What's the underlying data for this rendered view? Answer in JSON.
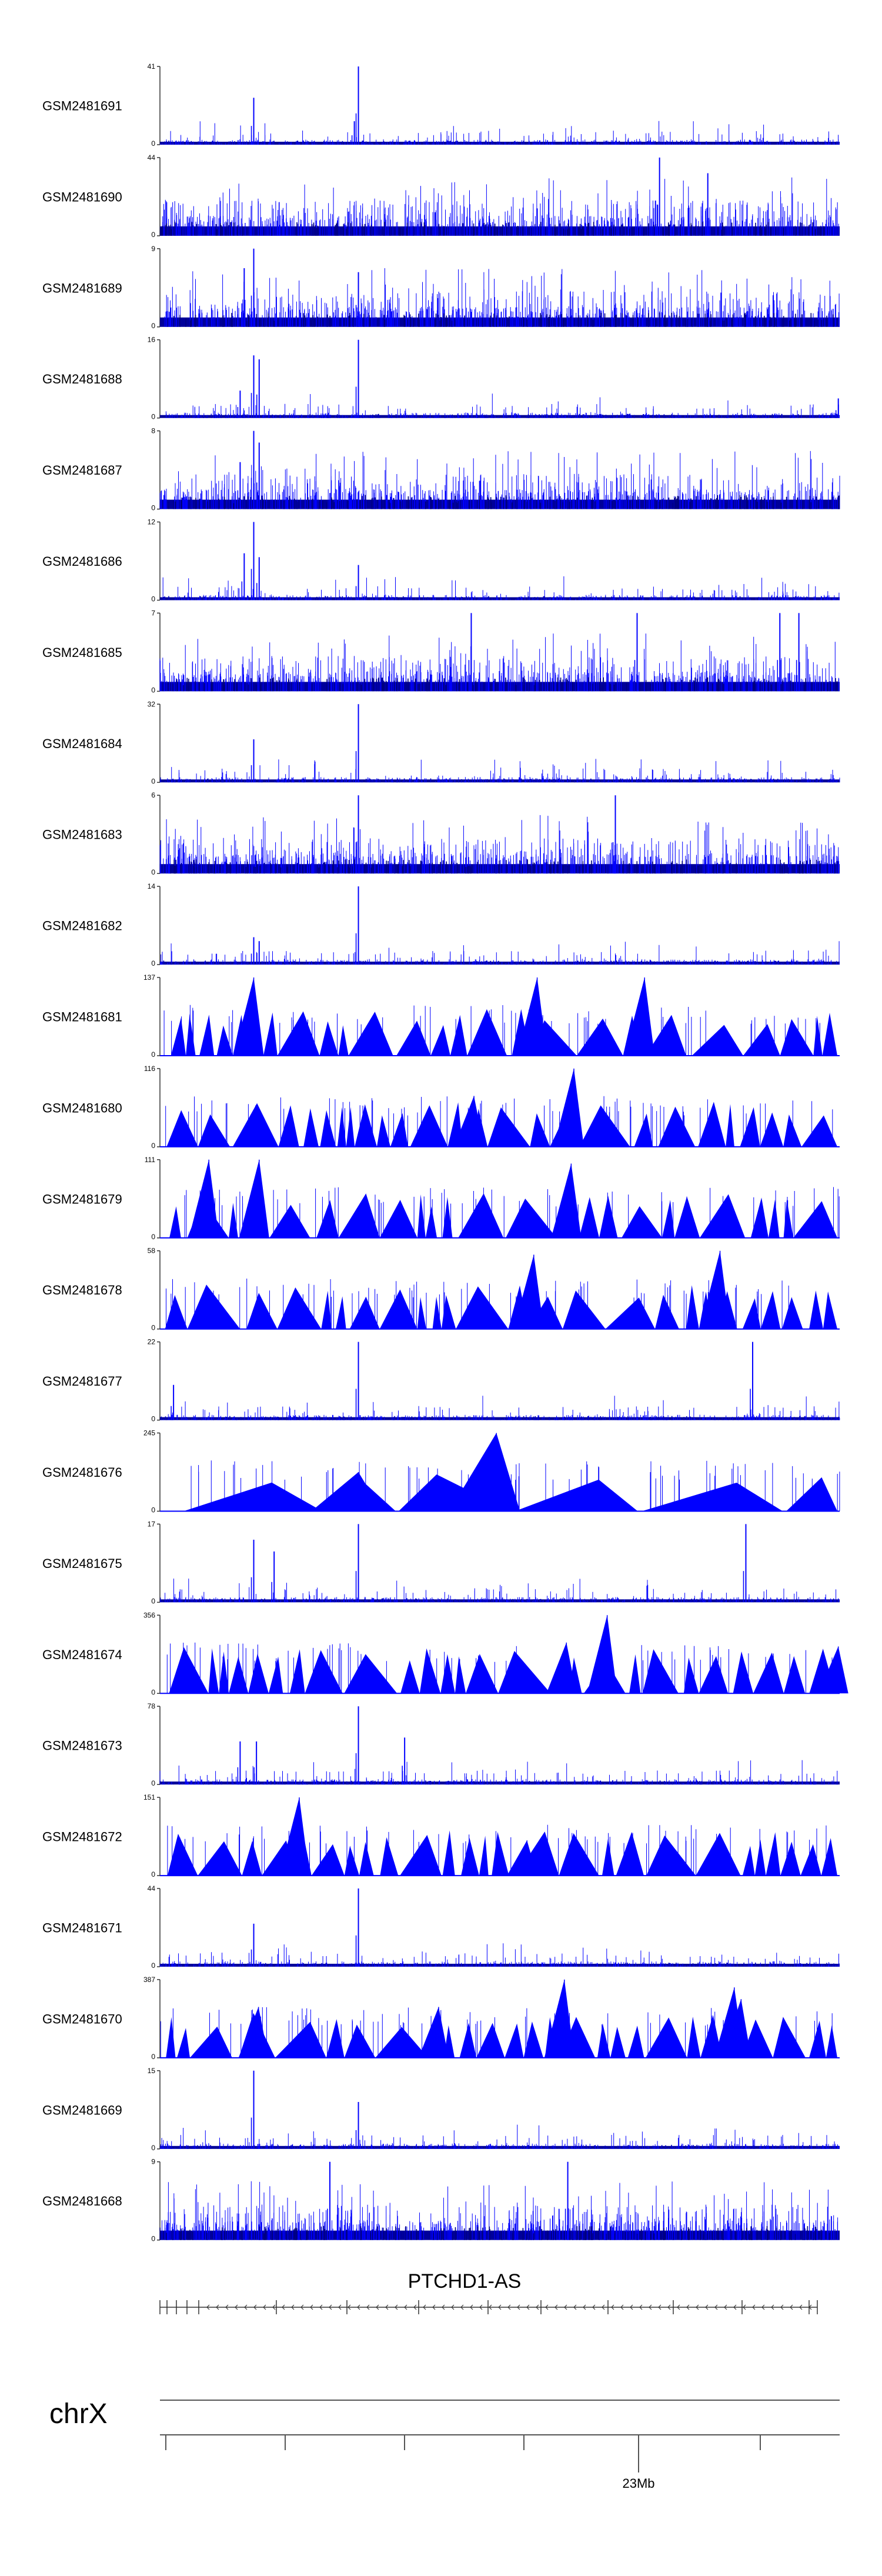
{
  "chart_data": {
    "type": "genome-browser-tracks",
    "chromosome": "chrX",
    "gene_label": "PTCHD1-AS",
    "genome_tick_label": "23Mb",
    "track_color": "#0000ff",
    "axis_color": "#333333",
    "tracks": [
      {
        "name": "GSM2481691",
        "ymin": 0,
        "ymax": 41,
        "style": "sparse",
        "peaks": [
          [
            0.138,
            0.6
          ],
          [
            0.292,
            1.0
          ],
          [
            0.286,
            0.3
          ]
        ]
      },
      {
        "name": "GSM2481690",
        "ymin": 0,
        "ymax": 44,
        "style": "dense",
        "peaks": [
          [
            0.735,
            1.0
          ],
          [
            0.806,
            0.8
          ],
          [
            0.729,
            0.45
          ],
          [
            0.555,
            0.35
          ],
          [
            0.405,
            0.3
          ]
        ]
      },
      {
        "name": "GSM2481689",
        "ymin": 0,
        "ymax": 9,
        "style": "dense",
        "peaks": [
          [
            0.138,
            1.0
          ],
          [
            0.124,
            0.75
          ],
          [
            0.292,
            0.7
          ]
        ]
      },
      {
        "name": "GSM2481688",
        "ymin": 0,
        "ymax": 16,
        "style": "sparse",
        "peaks": [
          [
            0.138,
            0.8
          ],
          [
            0.146,
            0.75
          ],
          [
            0.292,
            1.0
          ],
          [
            0.118,
            0.35
          ],
          [
            0.998,
            0.25
          ]
        ]
      },
      {
        "name": "GSM2481687",
        "ymin": 0,
        "ymax": 8,
        "style": "dense",
        "peaks": [
          [
            0.138,
            1.0
          ],
          [
            0.146,
            0.85
          ],
          [
            0.118,
            0.6
          ]
        ]
      },
      {
        "name": "GSM2481686",
        "ymin": 0,
        "ymax": 12,
        "style": "sparse",
        "peaks": [
          [
            0.138,
            1.0
          ],
          [
            0.124,
            0.6
          ],
          [
            0.146,
            0.55
          ],
          [
            0.292,
            0.45
          ]
        ]
      },
      {
        "name": "GSM2481685",
        "ymin": 0,
        "ymax": 7,
        "style": "dense",
        "peaks": [
          [
            0.458,
            1.0
          ],
          [
            0.702,
            1.0
          ],
          [
            0.912,
            1.0
          ],
          [
            0.94,
            1.0
          ]
        ]
      },
      {
        "name": "GSM2481684",
        "ymin": 0,
        "ymax": 32,
        "style": "sparse",
        "peaks": [
          [
            0.292,
            1.0
          ],
          [
            0.138,
            0.55
          ]
        ]
      },
      {
        "name": "GSM2481683",
        "ymin": 0,
        "ymax": 6,
        "style": "dense",
        "peaks": [
          [
            0.292,
            1.0
          ],
          [
            0.67,
            1.0
          ]
        ]
      },
      {
        "name": "GSM2481682",
        "ymin": 0,
        "ymax": 14,
        "style": "sparse",
        "peaks": [
          [
            0.292,
            1.0
          ],
          [
            0.138,
            0.35
          ],
          [
            0.146,
            0.3
          ]
        ]
      },
      {
        "name": "GSM2481681",
        "ymin": 0,
        "ymax": 137,
        "style": "triangles",
        "seed": 11,
        "peaks": [
          [
            0.138,
            1.0
          ],
          [
            0.555,
            1.0
          ],
          [
            0.713,
            1.0
          ]
        ]
      },
      {
        "name": "GSM2481680",
        "ymin": 0,
        "ymax": 116,
        "style": "triangles",
        "seed": 17,
        "peaks": [
          [
            0.609,
            1.0
          ],
          [
            0.462,
            0.65
          ]
        ]
      },
      {
        "name": "GSM2481679",
        "ymin": 0,
        "ymax": 111,
        "style": "triangles",
        "seed": 23,
        "peaks": [
          [
            0.072,
            1.0
          ],
          [
            0.146,
            1.0
          ],
          [
            0.605,
            0.95
          ]
        ]
      },
      {
        "name": "GSM2481678",
        "ymin": 0,
        "ymax": 58,
        "style": "triangles",
        "seed": 29,
        "peaks": [
          [
            0.824,
            1.0
          ],
          [
            0.55,
            0.95
          ]
        ]
      },
      {
        "name": "GSM2481677",
        "ymin": 0,
        "ymax": 22,
        "style": "sparse",
        "peaks": [
          [
            0.292,
            1.0
          ],
          [
            0.872,
            1.0
          ],
          [
            0.02,
            0.45
          ]
        ]
      },
      {
        "name": "GSM2481676",
        "ymin": 0,
        "ymax": 245,
        "style": "triangles-wide",
        "seed": 31,
        "peaks": [
          [
            0.495,
            1.0
          ],
          [
            0.292,
            0.5
          ]
        ]
      },
      {
        "name": "GSM2481675",
        "ymin": 0,
        "ymax": 17,
        "style": "sparse",
        "peaks": [
          [
            0.292,
            1.0
          ],
          [
            0.862,
            1.0
          ],
          [
            0.138,
            0.8
          ],
          [
            0.168,
            0.65
          ]
        ]
      },
      {
        "name": "GSM2481674",
        "ymin": 0,
        "ymax": 356,
        "style": "triangles",
        "seed": 37,
        "peaks": [
          [
            0.658,
            1.0
          ],
          [
            0.598,
            0.65
          ],
          [
            0.998,
            0.6
          ]
        ]
      },
      {
        "name": "GSM2481673",
        "ymin": 0,
        "ymax": 78,
        "style": "sparse",
        "peaks": [
          [
            0.292,
            1.0
          ],
          [
            0.36,
            0.6
          ],
          [
            0.118,
            0.55
          ],
          [
            0.142,
            0.55
          ]
        ]
      },
      {
        "name": "GSM2481672",
        "ymin": 0,
        "ymax": 151,
        "style": "triangles",
        "seed": 41,
        "peaks": [
          [
            0.205,
            1.0
          ],
          [
            0.54,
            0.45
          ]
        ]
      },
      {
        "name": "GSM2481671",
        "ymin": 0,
        "ymax": 44,
        "style": "sparse",
        "peaks": [
          [
            0.292,
            1.0
          ],
          [
            0.138,
            0.55
          ]
        ]
      },
      {
        "name": "GSM2481670",
        "ymin": 0,
        "ymax": 387,
        "style": "triangles",
        "seed": 43,
        "peaks": [
          [
            0.595,
            1.0
          ],
          [
            0.845,
            0.9
          ],
          [
            0.855,
            0.75
          ],
          [
            0.145,
            0.65
          ],
          [
            0.41,
            0.65
          ]
        ]
      },
      {
        "name": "GSM2481669",
        "ymin": 0,
        "ymax": 15,
        "style": "sparse",
        "peaks": [
          [
            0.138,
            1.0
          ],
          [
            0.292,
            0.6
          ]
        ]
      },
      {
        "name": "GSM2481668",
        "ymin": 0,
        "ymax": 9,
        "style": "dense",
        "peaks": [
          [
            0.25,
            1.0
          ],
          [
            0.6,
            1.0
          ]
        ]
      }
    ]
  }
}
